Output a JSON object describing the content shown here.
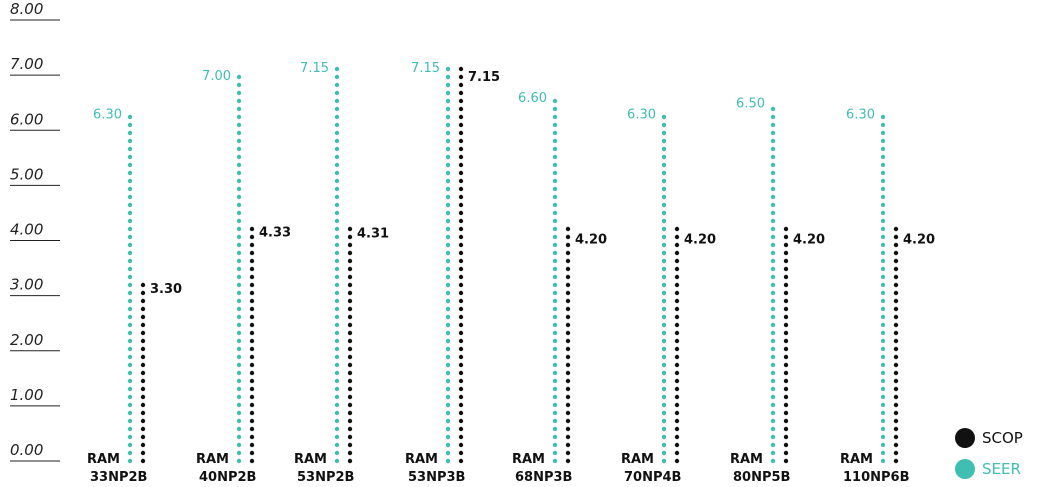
{
  "chart_data": {
    "type": "bar",
    "categories": [
      {
        "line1": "RAM",
        "line2": "33NP2B"
      },
      {
        "line1": "RAM",
        "line2": "40NP2B"
      },
      {
        "line1": "RAM",
        "line2": "53NP2B"
      },
      {
        "line1": "RAM",
        "line2": "53NP3B"
      },
      {
        "line1": "RAM",
        "line2": "68NP3B"
      },
      {
        "line1": "RAM",
        "line2": "70NP4B"
      },
      {
        "line1": "RAM",
        "line2": "80NP5B"
      },
      {
        "line1": "RAM",
        "line2": "110NP6B"
      }
    ],
    "series": [
      {
        "name": "SEER",
        "color": "#3fbfb2",
        "values": [
          6.3,
          7.0,
          7.15,
          7.15,
          6.6,
          6.3,
          6.5,
          6.3
        ],
        "labels": [
          "6.30",
          "7.00",
          "7.15",
          "7.15",
          "6.60",
          "6.30",
          "6.50",
          "6.30"
        ]
      },
      {
        "name": "SCOP",
        "color": "#111111",
        "values": [
          3.3,
          4.33,
          4.31,
          7.15,
          4.2,
          4.2,
          4.2,
          4.2
        ],
        "labels": [
          "3.30",
          "4.33",
          "4.31",
          "7.15",
          "4.20",
          "4.20",
          "4.20",
          "4.20"
        ]
      }
    ],
    "ylim": [
      0,
      8
    ],
    "yticks": [
      "0.00",
      "1.00",
      "2.00",
      "3.00",
      "4.00",
      "5.00",
      "6.00",
      "7.00",
      "8.00"
    ],
    "legend_position": "bottom-right",
    "legend": [
      {
        "label": "SCOP",
        "color": "#111111"
      },
      {
        "label": "SEER",
        "color": "#3fbfb2"
      }
    ],
    "grid": false
  }
}
